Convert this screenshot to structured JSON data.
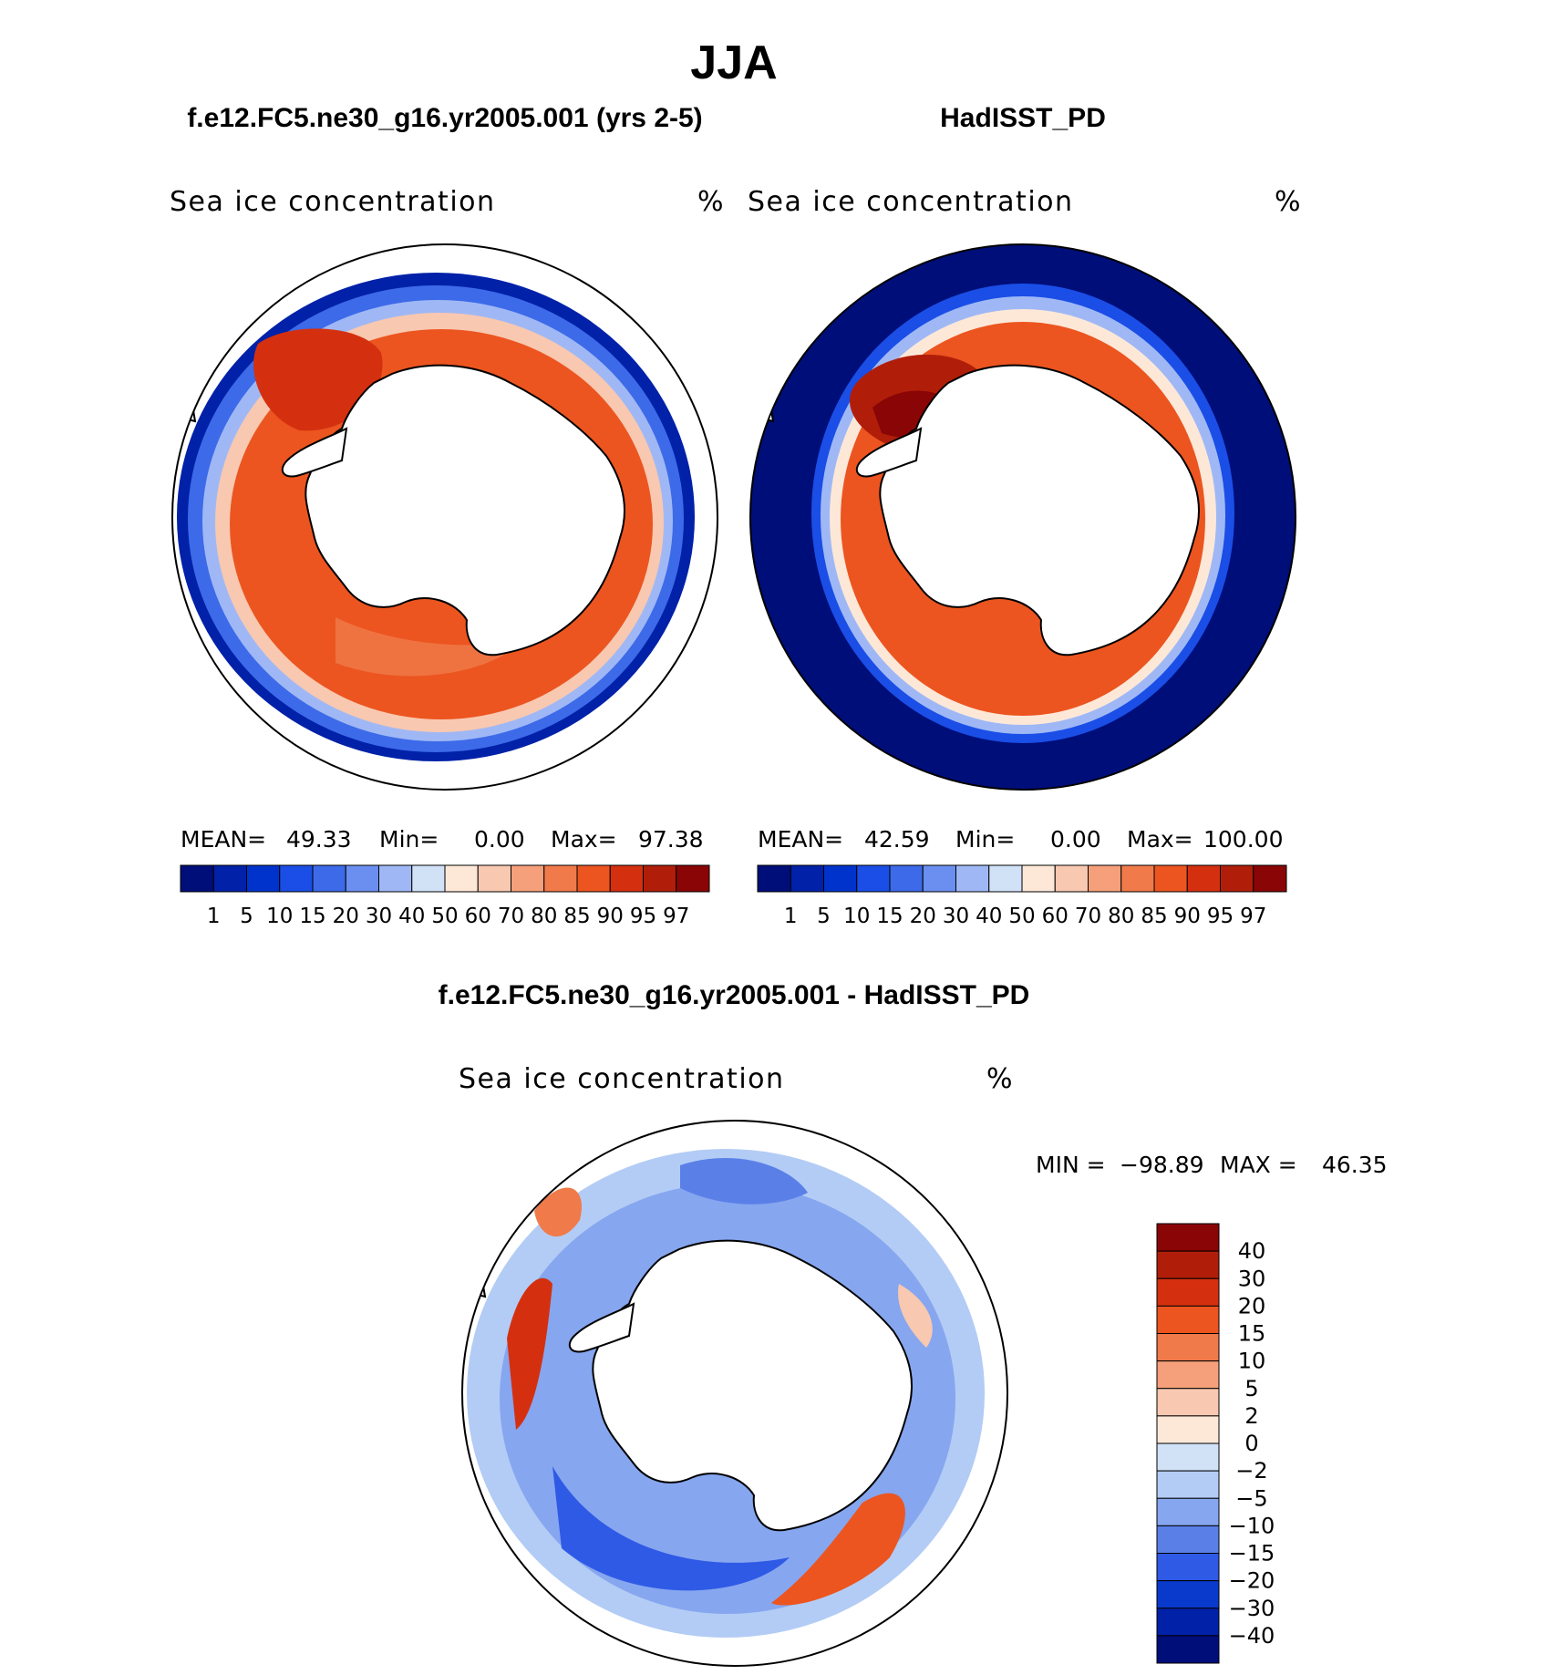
{
  "figure": {
    "title": "JJA"
  },
  "panels": [
    {
      "id": "model",
      "case_title": "f.e12.FC5.ne30_g16.yr2005.001 (yrs 2-5)",
      "variable": "Sea ice concentration",
      "units": "%",
      "stats": {
        "mean_label": "MEAN=",
        "mean": "49.33",
        "min_label": "Min=",
        "min": "0.00",
        "max_label": "Max=",
        "max": "97.38"
      }
    },
    {
      "id": "obs",
      "case_title": "HadISST_PD",
      "variable": "Sea ice concentration",
      "units": "%",
      "stats": {
        "mean_label": "MEAN=",
        "mean": "42.59",
        "min_label": "Min=",
        "min": "0.00",
        "max_label": "Max=",
        "max": "100.00"
      }
    },
    {
      "id": "diff",
      "case_title": "f.e12.FC5.ne30_g16.yr2005.001 - HadISST_PD",
      "variable": "Sea ice concentration",
      "units": "%",
      "stats": {
        "min_label": "MIN =",
        "min": "−98.89",
        "max_label": "MAX =",
        "max": "46.35"
      }
    }
  ],
  "colorbars": {
    "absolute": {
      "labels": [
        "1",
        "5",
        "10",
        "15",
        "20",
        "30",
        "40",
        "50",
        "60",
        "70",
        "80",
        "85",
        "90",
        "95",
        "97"
      ],
      "colors": [
        "#000e7a",
        "#0021a8",
        "#0033cc",
        "#1a4ee6",
        "#3d6ae8",
        "#6b8ff0",
        "#9fb8f5",
        "#d1e2f7",
        "#fde8d8",
        "#f8c8b0",
        "#f5a07a",
        "#f07a4a",
        "#ec5520",
        "#d43010",
        "#b01e0a",
        "#8a0505"
      ]
    },
    "difference": {
      "labels": [
        "40",
        "30",
        "20",
        "15",
        "10",
        "5",
        "2",
        "0",
        "−2",
        "−5",
        "−10",
        "−15",
        "−20",
        "−30",
        "−40"
      ],
      "colors": [
        "#8a0505",
        "#b01e0a",
        "#d43010",
        "#ec5520",
        "#f07a4a",
        "#f5a07a",
        "#f8c8b0",
        "#fde8d8",
        "#d1e2f7",
        "#b3ccf5",
        "#86a6ef",
        "#5a80e8",
        "#2f5ae6",
        "#0a3acc",
        "#0021a8",
        "#000e7a"
      ]
    }
  }
}
